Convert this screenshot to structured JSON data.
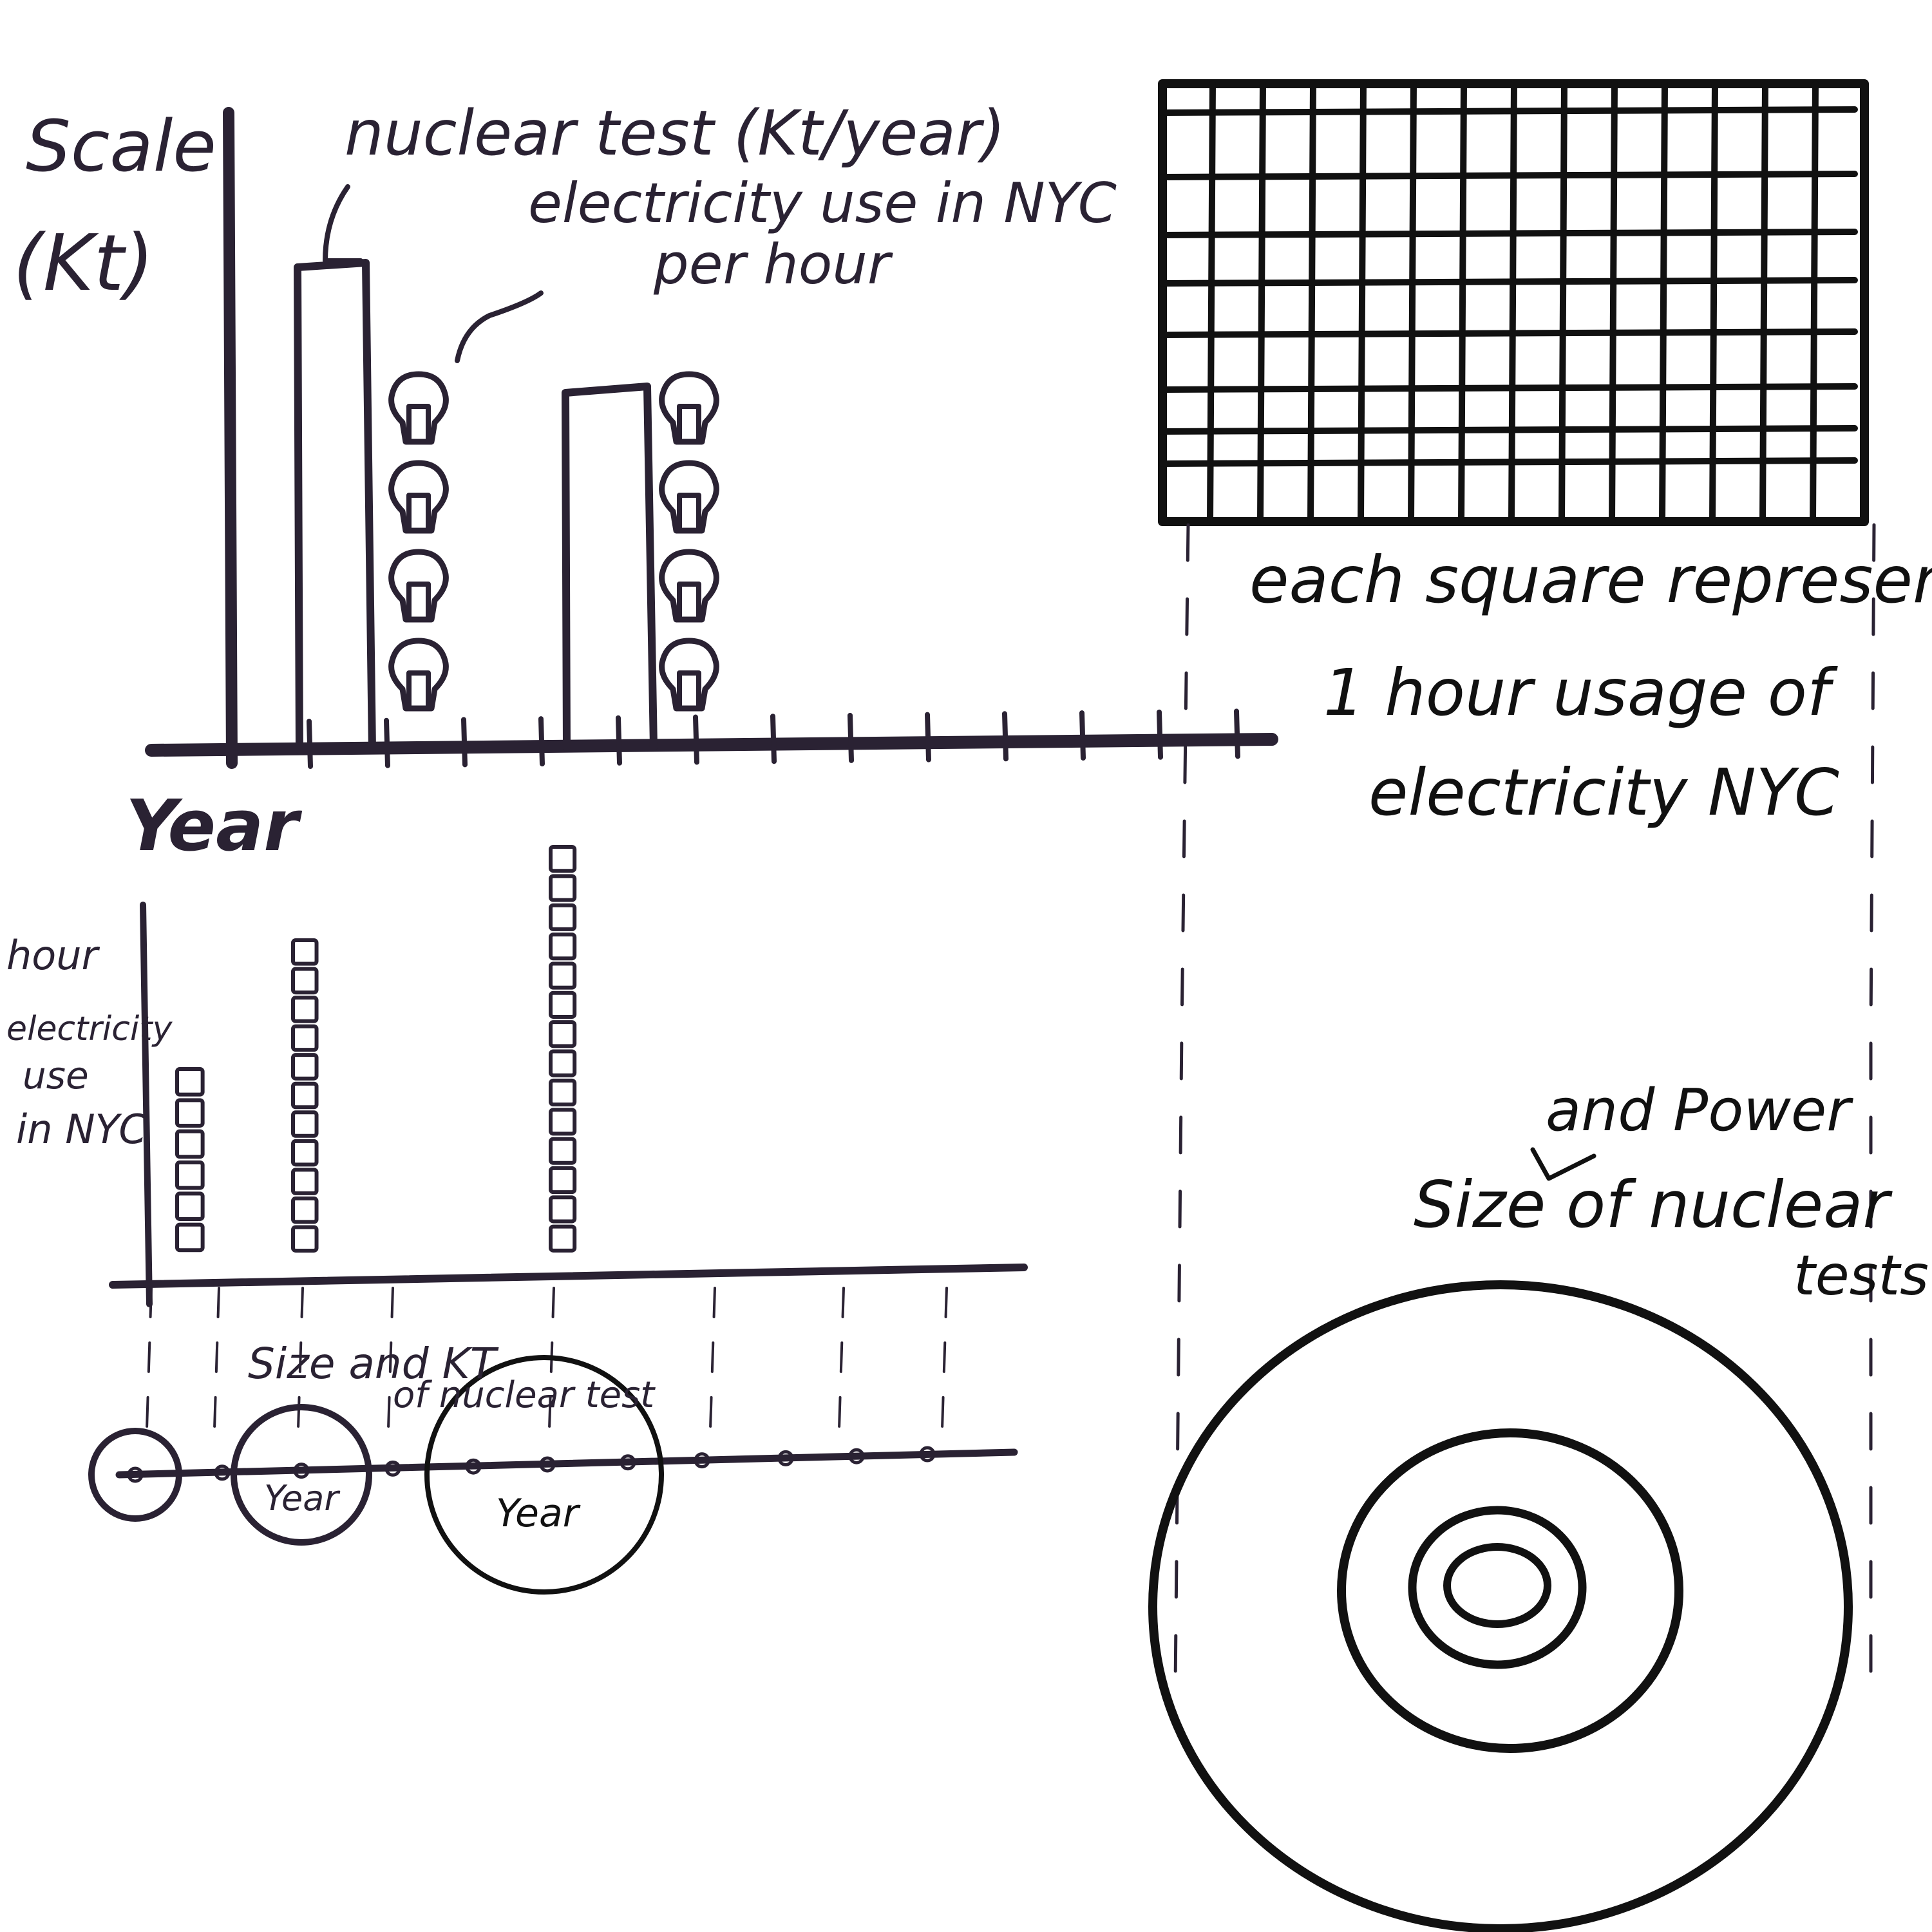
{
  "colors": {
    "ink": "#2a2233",
    "ink_dark": "#111111",
    "background": "#ffffff"
  },
  "top_chart": {
    "y_label_line1": "Scale",
    "y_label_line2": "(Kt)",
    "x_label": "Year",
    "bar_label": "nuclear test (Kt/year)",
    "bulb_label_line1": "electricity use in NYC",
    "bulb_label_line2": "per hour",
    "bulb_icon": "lightbulb-icon",
    "bulb_stacks": [
      4,
      4
    ],
    "tick_count": 13
  },
  "grid_legend": {
    "line1": "each square represent",
    "line2": "1 hour usage of",
    "line3": "electricity NYC"
  },
  "bottom_chart": {
    "y_label": [
      "hour",
      "electricity",
      "use",
      "in NYC"
    ],
    "square_stacks": [
      6,
      11,
      14
    ]
  },
  "bubble_strip": {
    "label_line1": "Size and KT",
    "label_line2": "of nuclear test",
    "bubble_labels": [
      "Year",
      "Year"
    ]
  },
  "concentric": {
    "label_insert": "and Power",
    "label_line1": "Size of nuclear",
    "label_line2": "tests"
  }
}
